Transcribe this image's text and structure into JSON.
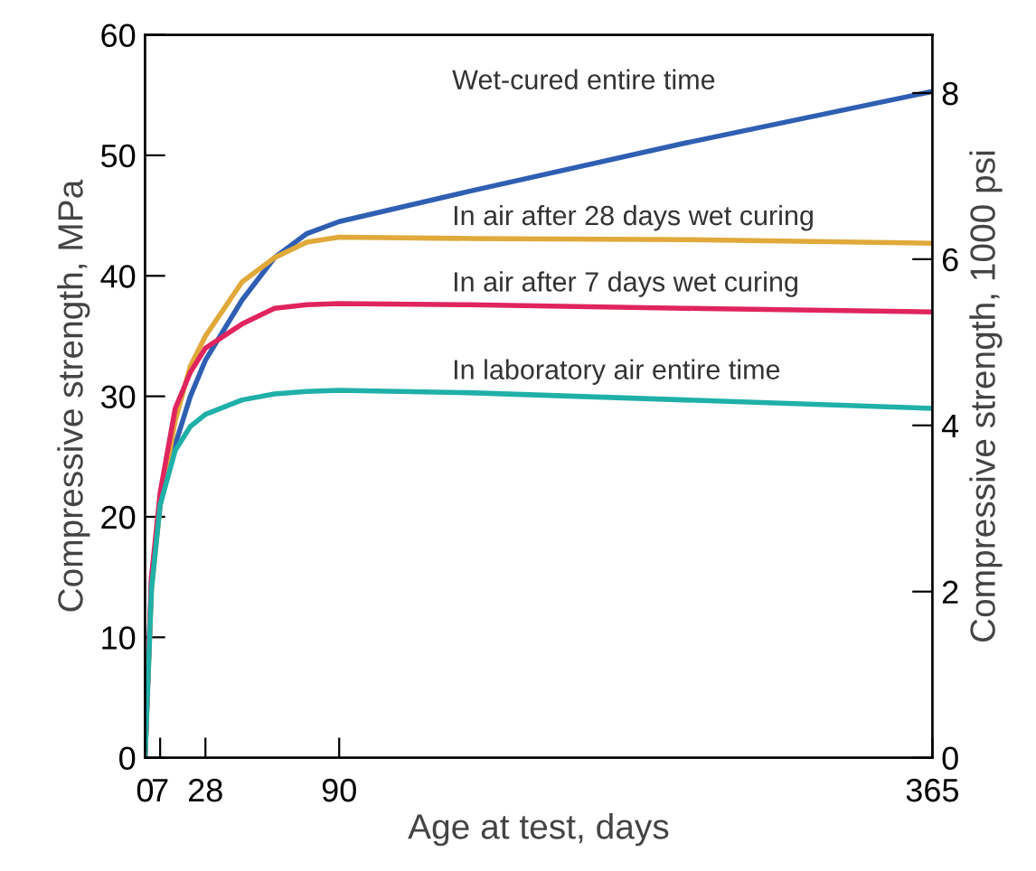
{
  "chart_data": {
    "type": "line",
    "xlabel": "Age at test, days",
    "ylabel": "Compressive strength, MPa",
    "y2label": "Compressive strength, 1000 psi",
    "x": [
      0,
      3,
      7,
      14,
      21,
      28,
      45,
      60,
      75,
      90,
      150,
      250,
      365
    ],
    "series": [
      {
        "name": "Wet-cured entire time",
        "color": "#2f5fb3",
        "values": [
          0,
          15,
          21,
          26,
          30,
          33,
          38,
          41.5,
          43.5,
          44.5,
          47,
          51,
          55.3
        ]
      },
      {
        "name": "In air after 28 days wet curing",
        "color": "#e0a93a",
        "values": [
          0,
          14,
          21,
          28,
          32.5,
          35,
          39.5,
          41.5,
          42.8,
          43.2,
          43.1,
          43,
          42.7
        ]
      },
      {
        "name": "In air after 7 days wet curing",
        "color": "#e0245e",
        "values": [
          0,
          15,
          22,
          29,
          32,
          34,
          36,
          37.3,
          37.6,
          37.7,
          37.6,
          37.3,
          37
        ]
      },
      {
        "name": "In laboratory air entire time",
        "color": "#1fb0a8",
        "values": [
          0,
          14,
          21,
          25.5,
          27.5,
          28.5,
          29.7,
          30.2,
          30.4,
          30.5,
          30.3,
          29.7,
          29
        ]
      }
    ],
    "xlim": [
      0,
      365
    ],
    "xticks": [
      0,
      7,
      28,
      90,
      365
    ],
    "ylim": [
      0,
      60
    ],
    "yticks": [
      0,
      10,
      20,
      30,
      40,
      50,
      60
    ],
    "y2lim": [
      0,
      8.7
    ],
    "y2ticks": [
      0,
      2,
      4,
      6,
      8
    ],
    "grid": false,
    "marker": "none",
    "line_style": "solid"
  }
}
